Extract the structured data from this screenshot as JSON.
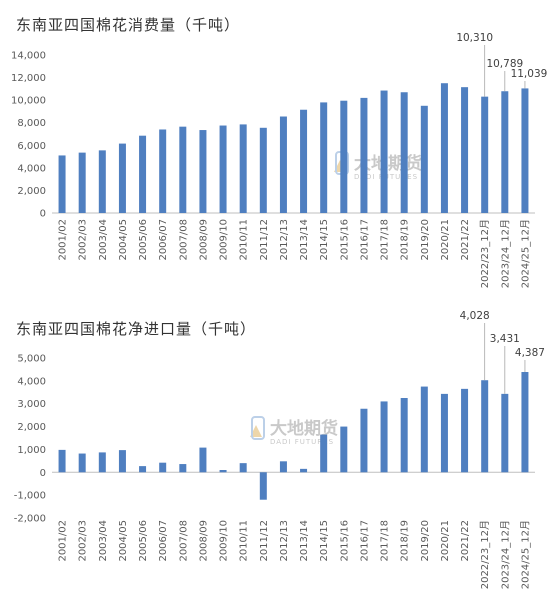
{
  "watermark": {
    "brand_cn": "大地期货",
    "brand_en": "DADI FUTURES"
  },
  "chart_data": [
    {
      "type": "bar",
      "title": "东南亚四国棉花消费量（千吨）",
      "color": "#4f7fc0",
      "categories": [
        "2001/02",
        "2002/03",
        "2003/04",
        "2004/05",
        "2005/06",
        "2006/07",
        "2007/08",
        "2008/09",
        "2009/10",
        "2010/11",
        "2011/12",
        "2012/13",
        "2013/14",
        "2014/15",
        "2015/16",
        "2016/17",
        "2017/18",
        "2018/19",
        "2019/20",
        "2020/21",
        "2021/22",
        "2022/23_12月",
        "2023/24_12月",
        "2024/25_12月"
      ],
      "values": [
        5100,
        5350,
        5550,
        6150,
        6850,
        7400,
        7650,
        7350,
        7750,
        7850,
        7550,
        8550,
        9150,
        9800,
        9950,
        10200,
        10850,
        10700,
        9500,
        11500,
        11150,
        10310,
        10789,
        11039
      ],
      "data_labels": {
        "21": "10,310",
        "22": "10,789",
        "23": "11,039"
      },
      "yticks": [
        "0",
        "2,000",
        "4,000",
        "6,000",
        "8,000",
        "10,000",
        "12,000",
        "14,000"
      ],
      "ylim": [
        0,
        14000
      ]
    },
    {
      "type": "bar",
      "title": "东南亚四国棉花净进口量（千吨）",
      "color": "#4f7fc0",
      "categories": [
        "2001/02",
        "2002/03",
        "2003/04",
        "2004/05",
        "2005/06",
        "2006/07",
        "2007/08",
        "2008/09",
        "2009/10",
        "2010/11",
        "2011/12",
        "2012/13",
        "2013/14",
        "2014/15",
        "2015/16",
        "2016/17",
        "2017/18",
        "2018/19",
        "2019/20",
        "2020/21",
        "2021/22",
        "2022/23_12月",
        "2023/24_12月",
        "2024/25_12月"
      ],
      "values": [
        980,
        820,
        870,
        970,
        270,
        420,
        360,
        1080,
        100,
        400,
        -1200,
        480,
        150,
        1650,
        2000,
        2780,
        3100,
        3250,
        3750,
        3430,
        3650,
        4028,
        3431,
        4387
      ],
      "data_labels": {
        "21": "4,028",
        "22": "3,431",
        "23": "4,387"
      },
      "yticks": [
        "-2,000",
        "-1,000",
        "0",
        "1,000",
        "2,000",
        "3,000",
        "4,000",
        "5,000"
      ],
      "ylim": [
        -2000,
        5000
      ]
    }
  ]
}
